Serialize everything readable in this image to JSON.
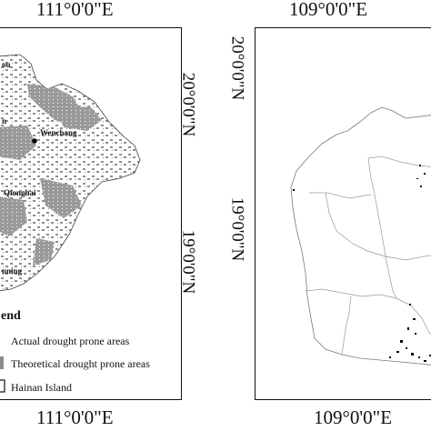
{
  "left_map": {
    "top_longitude": "111°0'0\"E",
    "bottom_longitude": "111°0'0\"E",
    "upper_latitude": "20°0'0\"N",
    "lower_latitude": "19°0'0\"N",
    "places": [
      {
        "id": "haikou",
        "label": "ou"
      },
      {
        "id": "dingan",
        "label": "n"
      },
      {
        "id": "wenchang",
        "label": "Wenchang"
      },
      {
        "id": "qionghai",
        "label": "Qionghai"
      },
      {
        "id": "wanning",
        "label": "nning"
      }
    ]
  },
  "right_map": {
    "top_longitude": "109°0'0\"E",
    "bottom_longitude": "109°0'0\"E",
    "upper_latitude": "20°0'0\"N",
    "lower_latitude": "19°0'0\"N"
  },
  "legend": {
    "title": "end",
    "items": [
      {
        "id": "actual",
        "label": "Actual drought prone areas",
        "symbol": "dot",
        "color": "#000000"
      },
      {
        "id": "theoretical",
        "label": "Theoretical drought prone areas",
        "symbol": "fill",
        "color": "#8c8c8c"
      },
      {
        "id": "island",
        "label": "Hainan Island",
        "symbol": "outline",
        "color": "#000000"
      }
    ]
  }
}
